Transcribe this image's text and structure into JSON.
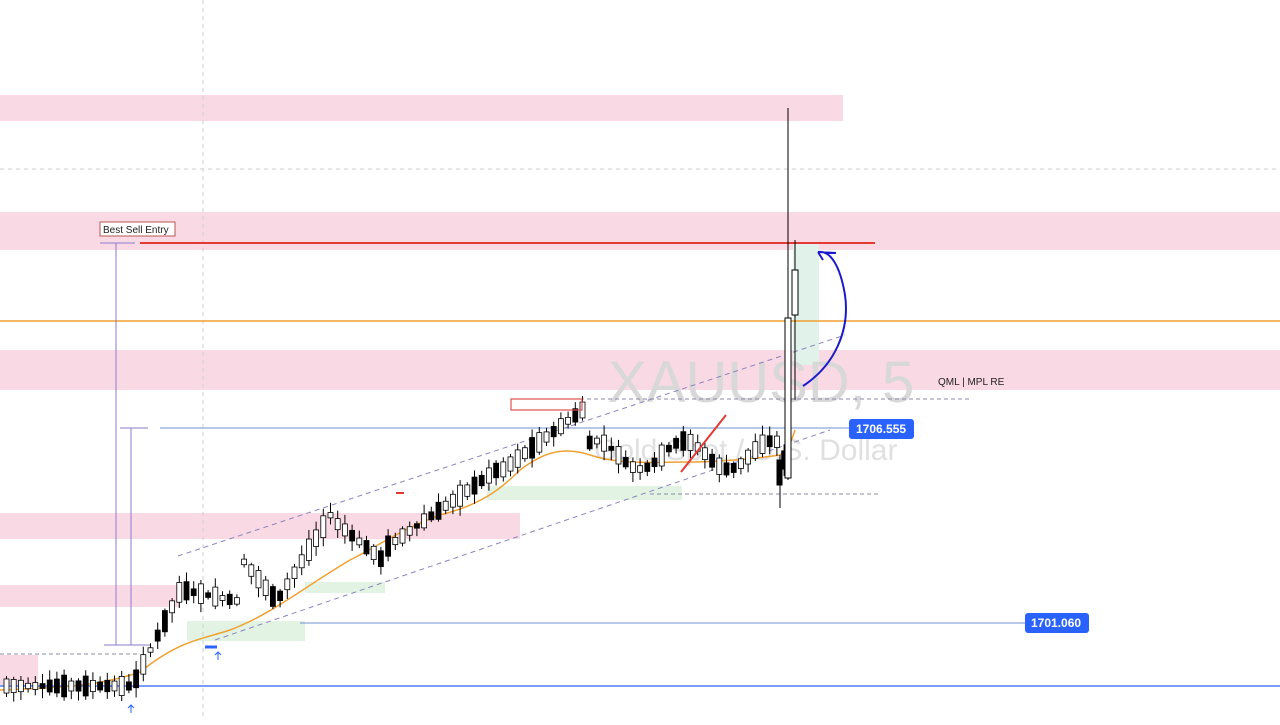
{
  "chart_data": {
    "type": "candlestick",
    "symbol": "XAUUSD",
    "timeframe": "5",
    "watermark": {
      "title": "XAUUSD, 5",
      "subtitle": "Gold Spot / U.S. Dollar"
    },
    "price_labels": [
      "1706.555",
      "1701.060"
    ],
    "annotations": {
      "best_sell_entry": "Best Sell Entry",
      "qml_label": "QML | MPL RE"
    },
    "colors": {
      "supply_zone": "#f9d9e3",
      "demand_zone": "#e3f3e3",
      "moving_average": "#f0a030",
      "horizontal_orange": "#f0a030",
      "badge_blue": "#2962ff",
      "sell_line_red": "#e53935",
      "hand_arrow": "#1a1acc",
      "candle_up": "#ffffff",
      "candle_down": "#000000"
    }
  }
}
